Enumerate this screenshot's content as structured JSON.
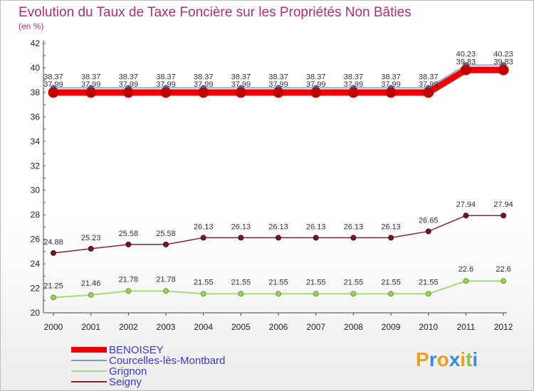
{
  "chart_data": {
    "type": "line",
    "title": "Evolution du Taux de Taxe Foncière sur les Propriétés Non Bâties",
    "subtitle": "(en %)",
    "xlabel": "",
    "ylabel": "(en %)",
    "categories": [
      "2000",
      "2001",
      "2002",
      "2003",
      "2004",
      "2005",
      "2006",
      "2007",
      "2008",
      "2009",
      "2010",
      "2011",
      "2012"
    ],
    "ylim": [
      20,
      42
    ],
    "yticks": [
      "20",
      "22",
      "24",
      "26",
      "28",
      "30",
      "32",
      "34",
      "36",
      "38",
      "40",
      "42"
    ],
    "grid": false,
    "series": [
      {
        "name": "BENOISEY",
        "color": "#ee0000",
        "values": [
          37.99,
          37.99,
          37.99,
          37.99,
          37.99,
          37.99,
          37.99,
          37.99,
          37.99,
          37.99,
          37.99,
          39.83,
          39.83
        ],
        "labels": [
          "37.99",
          "37.99",
          "37.99",
          "37.99",
          "37.99",
          "37.99",
          "37.99",
          "37.99",
          "37.99",
          "37.99",
          "37.99",
          "39.83",
          "39.83"
        ]
      },
      {
        "name": "Courcelles-lès-Montbard",
        "color": "#6e9fca",
        "values": [
          38.37,
          38.37,
          38.37,
          38.37,
          38.37,
          38.37,
          38.37,
          38.37,
          38.37,
          38.37,
          38.37,
          40.23,
          40.23
        ],
        "labels": [
          "38.37",
          "38.37",
          "38.37",
          "38.37",
          "38.37",
          "38.37",
          "38.37",
          "38.37",
          "38.37",
          "38.37",
          "38.37",
          "40.23",
          "40.23"
        ]
      },
      {
        "name": "Grignon",
        "color": "#a8d878",
        "values": [
          21.25,
          21.46,
          21.78,
          21.78,
          21.55,
          21.55,
          21.55,
          21.55,
          21.55,
          21.55,
          21.55,
          22.6,
          22.6
        ],
        "labels": [
          "21.25",
          "21.46",
          "21.78",
          "21.78",
          "21.55",
          "21.55",
          "21.55",
          "21.55",
          "21.55",
          "21.55",
          "21.55",
          "22.6",
          "22.6"
        ]
      },
      {
        "name": "Seigny",
        "color": "#7a2a30",
        "values": [
          24.88,
          25.23,
          25.58,
          25.58,
          26.13,
          26.13,
          26.13,
          26.13,
          26.13,
          26.13,
          26.65,
          27.94,
          27.94
        ],
        "labels": [
          "24.88",
          "25.23",
          "25.58",
          "25.58",
          "26.13",
          "26.13",
          "26.13",
          "26.13",
          "26.13",
          "26.13",
          "26.65",
          "27.94",
          "27.94"
        ]
      }
    ],
    "legend_position": "bottom-left"
  },
  "logo": {
    "text": [
      "P",
      "r",
      "o",
      "x",
      "i",
      "t",
      "i"
    ],
    "colors": [
      "#e8a020",
      "#3a8fd0",
      "#e8a020",
      "#3a8fd0",
      "#e8a020",
      "#8fc040",
      "#3a8fd0"
    ]
  }
}
